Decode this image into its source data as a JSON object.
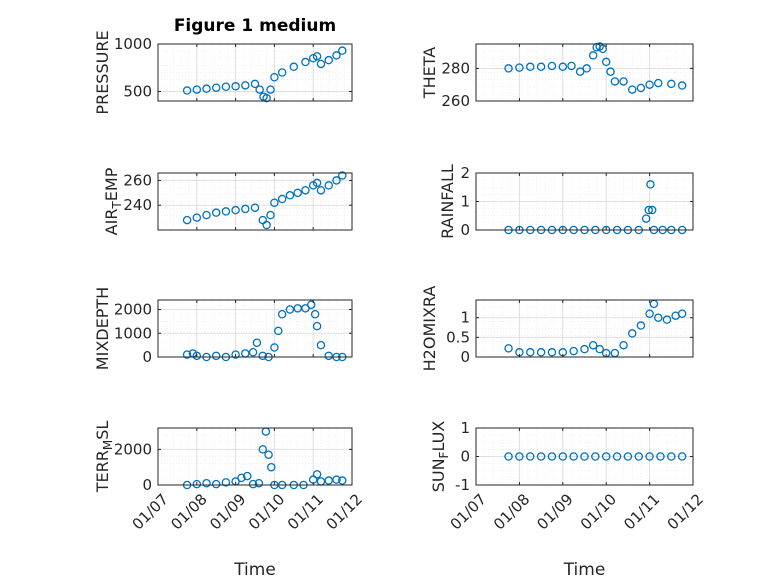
{
  "colors": {
    "marker": "#0072bd",
    "axis": "#262626",
    "grid": "#dfdfdf",
    "minor_grid": "#ececec"
  },
  "x_ticks": [
    "01/07",
    "01/08",
    "01/09",
    "01/10",
    "01/11",
    "01/12"
  ],
  "x_label": "Time",
  "chart_data": [
    {
      "id": "pressure",
      "type": "scatter",
      "title": "Figure 1 medium",
      "ylabel": "PRESSURE",
      "ylim": [
        400,
        1000
      ],
      "yticks": [
        500,
        1000
      ],
      "xlim": [
        0,
        5
      ],
      "grid": true,
      "x": [
        0.75,
        1.0,
        1.25,
        1.5,
        1.75,
        2.0,
        2.25,
        2.5,
        2.62,
        2.72,
        2.8,
        2.9,
        3.0,
        3.2,
        3.5,
        3.8,
        4.0,
        4.1,
        4.2,
        4.4,
        4.6,
        4.75
      ],
      "y": [
        510,
        520,
        530,
        540,
        550,
        555,
        565,
        580,
        520,
        445,
        430,
        520,
        650,
        700,
        760,
        810,
        850,
        870,
        790,
        830,
        880,
        930
      ]
    },
    {
      "id": "theta",
      "type": "scatter",
      "ylabel": "THETA",
      "ylim": [
        260,
        295
      ],
      "yticks": [
        260,
        280
      ],
      "xlim": [
        0,
        5
      ],
      "grid": true,
      "x": [
        0.75,
        1.0,
        1.25,
        1.5,
        1.75,
        2.0,
        2.2,
        2.4,
        2.55,
        2.7,
        2.78,
        2.85,
        2.92,
        3.0,
        3.1,
        3.2,
        3.4,
        3.6,
        3.8,
        4.0,
        4.2,
        4.5,
        4.75
      ],
      "y": [
        280,
        280.5,
        281,
        281,
        281.5,
        281,
        281.5,
        278,
        280,
        288,
        293,
        293.5,
        292,
        284,
        278,
        272,
        272,
        267,
        268,
        270,
        271,
        270.5,
        269.5
      ]
    },
    {
      "id": "air-temp",
      "type": "scatter",
      "ylabel": "AIR_TEMP",
      "ylim": [
        220,
        266
      ],
      "yticks": [
        240,
        260
      ],
      "xlim": [
        0,
        5
      ],
      "grid": true,
      "x": [
        0.75,
        1.0,
        1.25,
        1.5,
        1.75,
        2.0,
        2.25,
        2.5,
        2.7,
        2.8,
        2.9,
        3.0,
        3.2,
        3.4,
        3.6,
        3.8,
        4.0,
        4.1,
        4.2,
        4.4,
        4.6,
        4.75
      ],
      "y": [
        228,
        230,
        232,
        234,
        235,
        236,
        237,
        238,
        228,
        224,
        232,
        242,
        245,
        248,
        250,
        252,
        256,
        258,
        252,
        256,
        260,
        264
      ]
    },
    {
      "id": "rainfall",
      "type": "scatter",
      "ylabel": "RAINFALL",
      "ylim": [
        0,
        2
      ],
      "yticks": [
        0,
        1,
        2
      ],
      "xlim": [
        0,
        5
      ],
      "grid": true,
      "x": [
        0.75,
        1.0,
        1.25,
        1.5,
        1.75,
        2.0,
        2.25,
        2.5,
        2.75,
        3.0,
        3.25,
        3.5,
        3.75,
        3.92,
        3.98,
        4.02,
        4.06,
        4.1,
        4.3,
        4.5,
        4.75
      ],
      "y": [
        0,
        0,
        0,
        0,
        0,
        0,
        0,
        0,
        0,
        0,
        0,
        0,
        0,
        0.4,
        0.7,
        1.6,
        0.7,
        0,
        0,
        0,
        0
      ]
    },
    {
      "id": "mixdepth",
      "type": "scatter",
      "ylabel": "MIXDEPTH",
      "ylim": [
        0,
        2400
      ],
      "yticks": [
        0,
        1000,
        2000
      ],
      "xlim": [
        0,
        5
      ],
      "grid": true,
      "x": [
        0.75,
        0.9,
        1.0,
        1.25,
        1.5,
        1.75,
        2.0,
        2.25,
        2.45,
        2.55,
        2.7,
        2.85,
        3.0,
        3.1,
        3.2,
        3.4,
        3.6,
        3.8,
        3.95,
        4.05,
        4.1,
        4.2,
        4.4,
        4.6,
        4.75
      ],
      "y": [
        100,
        150,
        50,
        0,
        50,
        0,
        100,
        150,
        200,
        600,
        50,
        0,
        400,
        1100,
        1800,
        2000,
        2050,
        2050,
        2200,
        1800,
        1300,
        500,
        50,
        0,
        0
      ]
    },
    {
      "id": "h2omixra",
      "type": "scatter",
      "ylabel": "H2OMIXRA",
      "ylim": [
        0,
        1.45
      ],
      "yticks": [
        0,
        0.5,
        1
      ],
      "xlim": [
        0,
        5
      ],
      "grid": true,
      "x": [
        0.75,
        1.0,
        1.25,
        1.5,
        1.75,
        2.0,
        2.25,
        2.5,
        2.7,
        2.85,
        3.0,
        3.2,
        3.4,
        3.6,
        3.8,
        4.0,
        4.1,
        4.2,
        4.4,
        4.6,
        4.75
      ],
      "y": [
        0.22,
        0.12,
        0.12,
        0.12,
        0.12,
        0.12,
        0.15,
        0.2,
        0.3,
        0.2,
        0.1,
        0.1,
        0.3,
        0.6,
        0.8,
        1.1,
        1.35,
        1.0,
        0.95,
        1.05,
        1.1
      ]
    },
    {
      "id": "terr-msl",
      "type": "scatter",
      "ylabel": "TERR_MSL",
      "ylim": [
        0,
        3200
      ],
      "yticks": [
        0,
        2000
      ],
      "xlim": [
        0,
        5
      ],
      "grid": true,
      "x": [
        0.75,
        1.0,
        1.25,
        1.5,
        1.75,
        2.0,
        2.15,
        2.3,
        2.45,
        2.6,
        2.7,
        2.78,
        2.85,
        2.92,
        3.0,
        3.2,
        3.5,
        3.75,
        4.0,
        4.1,
        4.2,
        4.4,
        4.6,
        4.75
      ],
      "y": [
        0,
        50,
        100,
        50,
        150,
        200,
        400,
        500,
        50,
        100,
        2000,
        3000,
        1700,
        1000,
        0,
        0,
        0,
        0,
        300,
        600,
        200,
        250,
        300,
        250
      ]
    },
    {
      "id": "sun-flux",
      "type": "scatter",
      "ylabel": "SUN_FLUX",
      "ylim": [
        -1,
        1
      ],
      "yticks": [
        -1,
        0,
        1
      ],
      "xlim": [
        0,
        5
      ],
      "grid": true,
      "x": [
        0.75,
        1.0,
        1.25,
        1.5,
        1.75,
        2.0,
        2.25,
        2.5,
        2.75,
        3.0,
        3.25,
        3.5,
        3.75,
        4.0,
        4.25,
        4.5,
        4.75
      ],
      "y": [
        0,
        0,
        0,
        0,
        0,
        0,
        0,
        0,
        0,
        0,
        0,
        0,
        0,
        0,
        0,
        0,
        0
      ]
    }
  ]
}
